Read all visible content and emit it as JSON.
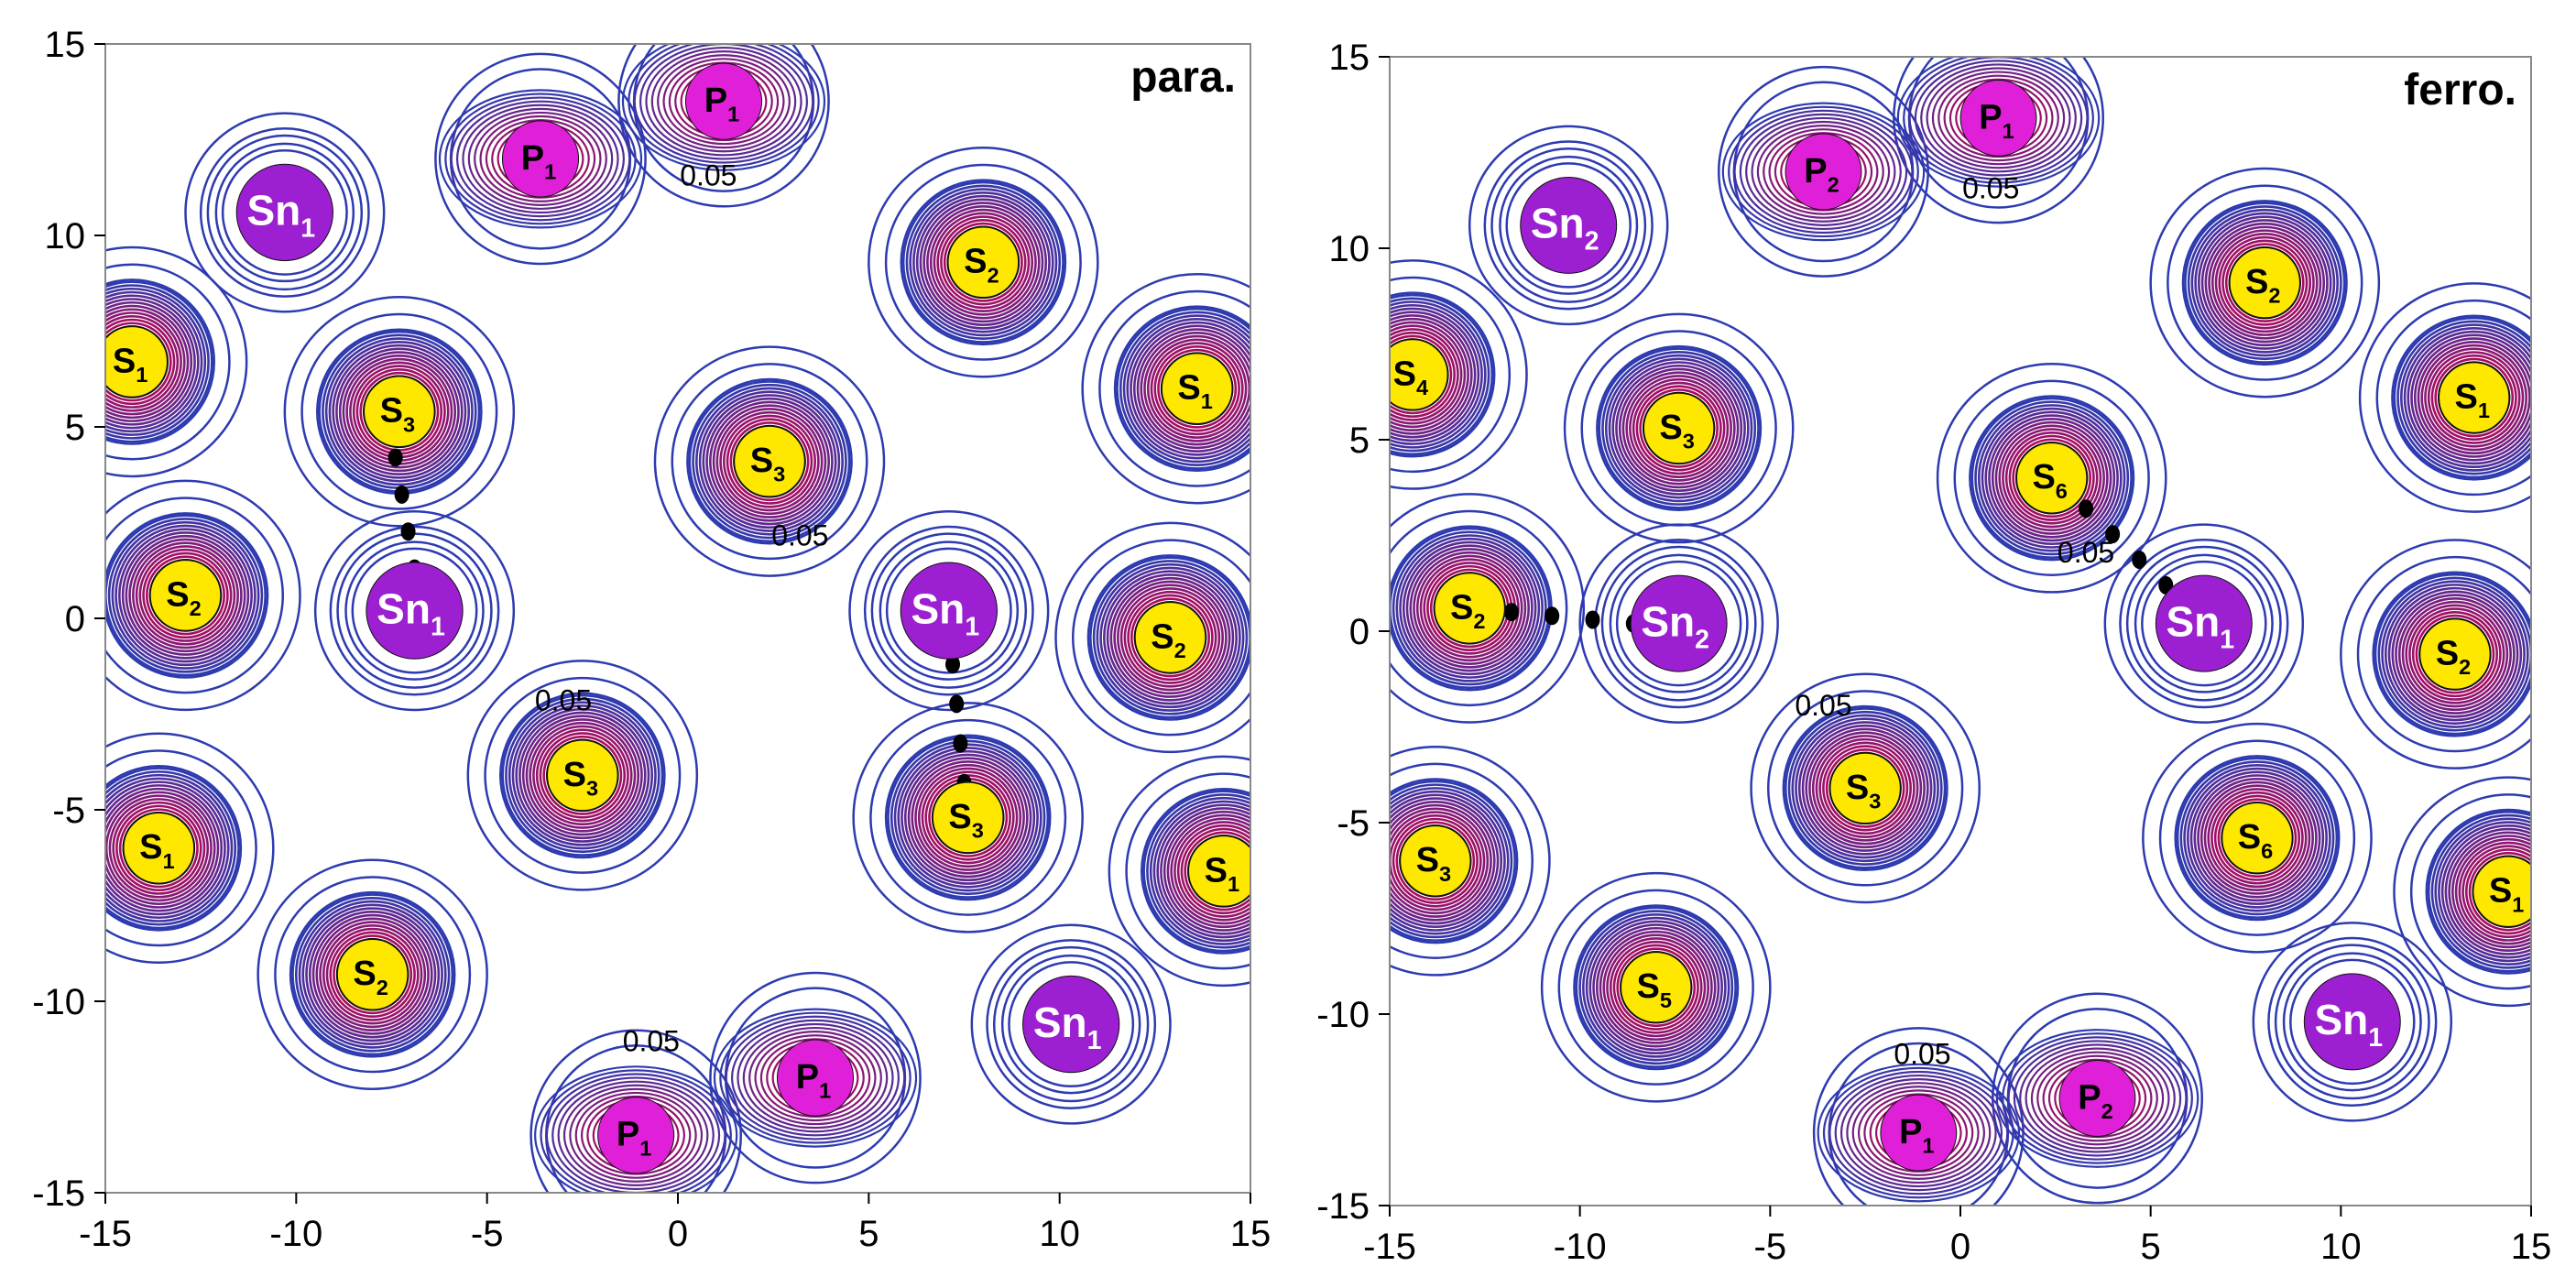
{
  "chart_data": [
    {
      "type": "contour",
      "title": "para.",
      "xlim": [
        -15,
        15
      ],
      "ylim": [
        -15,
        15
      ],
      "x_ticks": [
        -15,
        -10,
        -5,
        0,
        5,
        10,
        15
      ],
      "y_ticks": [
        -15,
        -10,
        -5,
        0,
        5,
        10,
        15
      ],
      "contour_labels": [
        {
          "text": "0.05",
          "x": 0.8,
          "y": 11.3
        },
        {
          "text": "0.05",
          "x": 3.2,
          "y": 1.9
        },
        {
          "text": "0.05",
          "x": -3.0,
          "y": -2.4
        },
        {
          "text": "0.05",
          "x": -0.7,
          "y": -11.3
        }
      ],
      "atoms": [
        {
          "element": "P",
          "index": "1",
          "x": 1.2,
          "y": 13.5,
          "kind": "P"
        },
        {
          "element": "P",
          "index": "1",
          "x": -3.6,
          "y": 12.0,
          "kind": "P"
        },
        {
          "element": "Sn",
          "index": "1",
          "x": -10.3,
          "y": 10.6,
          "kind": "Sn"
        },
        {
          "element": "S",
          "index": "2",
          "x": 8.0,
          "y": 9.3,
          "kind": "S"
        },
        {
          "element": "S",
          "index": "1",
          "x": -14.3,
          "y": 6.7,
          "kind": "S"
        },
        {
          "element": "S",
          "index": "1",
          "x": 13.6,
          "y": 6.0,
          "kind": "S"
        },
        {
          "element": "S",
          "index": "3",
          "x": -7.3,
          "y": 5.4,
          "kind": "S"
        },
        {
          "element": "S",
          "index": "3",
          "x": 2.4,
          "y": 4.1,
          "kind": "S"
        },
        {
          "element": "S",
          "index": "2",
          "x": -12.9,
          "y": 0.6,
          "kind": "S"
        },
        {
          "element": "Sn",
          "index": "1",
          "x": -6.9,
          "y": 0.2,
          "kind": "Sn"
        },
        {
          "element": "Sn",
          "index": "1",
          "x": 7.1,
          "y": 0.2,
          "kind": "Sn"
        },
        {
          "element": "S",
          "index": "2",
          "x": 12.9,
          "y": -0.5,
          "kind": "S"
        },
        {
          "element": "S",
          "index": "3",
          "x": -2.5,
          "y": -4.1,
          "kind": "S"
        },
        {
          "element": "S",
          "index": "3",
          "x": 7.6,
          "y": -5.2,
          "kind": "S"
        },
        {
          "element": "S",
          "index": "1",
          "x": -13.6,
          "y": -6.0,
          "kind": "S"
        },
        {
          "element": "S",
          "index": "1",
          "x": 14.3,
          "y": -6.6,
          "kind": "S"
        },
        {
          "element": "S",
          "index": "2",
          "x": -8.0,
          "y": -9.3,
          "kind": "S"
        },
        {
          "element": "Sn",
          "index": "1",
          "x": 10.3,
          "y": -10.6,
          "kind": "Sn"
        },
        {
          "element": "P",
          "index": "1",
          "x": 3.6,
          "y": -12.0,
          "kind": "P"
        },
        {
          "element": "P",
          "index": "1",
          "x": -1.1,
          "y": -13.5,
          "kind": "P"
        }
      ],
      "bonds": [
        {
          "x1": -7.4,
          "y1": 4.2,
          "x2": -6.9,
          "y2": 1.3
        },
        {
          "x1": 7.2,
          "y1": -1.2,
          "x2": 7.5,
          "y2": -4.3
        }
      ]
    },
    {
      "type": "contour",
      "title": "ferro.",
      "xlim": [
        -15,
        15
      ],
      "ylim": [
        -15,
        15
      ],
      "x_ticks": [
        -15,
        -10,
        -5,
        0,
        5,
        10,
        15
      ],
      "y_ticks": [
        -15,
        -10,
        -5,
        0,
        5,
        10,
        15
      ],
      "contour_labels": [
        {
          "text": "0.05",
          "x": 0.8,
          "y": 11.3
        },
        {
          "text": "0.05",
          "x": 3.3,
          "y": 1.8
        },
        {
          "text": "0.05",
          "x": -3.6,
          "y": -2.2
        },
        {
          "text": "0.05",
          "x": -1.0,
          "y": -11.3
        }
      ],
      "atoms": [
        {
          "element": "P",
          "index": "1",
          "x": 1.0,
          "y": 13.4,
          "kind": "P"
        },
        {
          "element": "P",
          "index": "2",
          "x": -3.6,
          "y": 12.0,
          "kind": "P"
        },
        {
          "element": "Sn",
          "index": "2",
          "x": -10.3,
          "y": 10.6,
          "kind": "Sn"
        },
        {
          "element": "S",
          "index": "2",
          "x": 8.0,
          "y": 9.1,
          "kind": "S"
        },
        {
          "element": "S",
          "index": "4",
          "x": -14.4,
          "y": 6.7,
          "kind": "S"
        },
        {
          "element": "S",
          "index": "1",
          "x": 13.5,
          "y": 6.1,
          "kind": "S"
        },
        {
          "element": "S",
          "index": "3",
          "x": -7.4,
          "y": 5.3,
          "kind": "S"
        },
        {
          "element": "S",
          "index": "6",
          "x": 2.4,
          "y": 4.0,
          "kind": "S"
        },
        {
          "element": "S",
          "index": "2",
          "x": -12.9,
          "y": 0.6,
          "kind": "S"
        },
        {
          "element": "Sn",
          "index": "2",
          "x": -7.4,
          "y": 0.2,
          "kind": "Sn"
        },
        {
          "element": "Sn",
          "index": "1",
          "x": 6.4,
          "y": 0.2,
          "kind": "Sn"
        },
        {
          "element": "S",
          "index": "2",
          "x": 13.0,
          "y": -0.6,
          "kind": "S"
        },
        {
          "element": "S",
          "index": "3",
          "x": -2.5,
          "y": -4.1,
          "kind": "S"
        },
        {
          "element": "S",
          "index": "6",
          "x": 7.8,
          "y": -5.4,
          "kind": "S"
        },
        {
          "element": "S",
          "index": "3",
          "x": -13.8,
          "y": -6.0,
          "kind": "S"
        },
        {
          "element": "S",
          "index": "1",
          "x": 14.4,
          "y": -6.8,
          "kind": "S"
        },
        {
          "element": "S",
          "index": "5",
          "x": -8.0,
          "y": -9.3,
          "kind": "S"
        },
        {
          "element": "Sn",
          "index": "1",
          "x": 10.3,
          "y": -10.2,
          "kind": "Sn"
        },
        {
          "element": "P",
          "index": "2",
          "x": 3.6,
          "y": -12.2,
          "kind": "P"
        },
        {
          "element": "P",
          "index": "1",
          "x": -1.1,
          "y": -13.1,
          "kind": "P"
        }
      ],
      "bonds": [
        {
          "x1": -11.8,
          "y1": 0.5,
          "x2": -8.6,
          "y2": 0.2
        },
        {
          "x1": 3.3,
          "y1": 3.2,
          "x2": 5.4,
          "y2": 1.2
        }
      ]
    }
  ],
  "colors": {
    "contour_outer": "#2e3bb0",
    "contour_inner": "#c7004a",
    "core_white": "#ffffff",
    "S": "#ffe800",
    "Sn": "#9c1fd1",
    "P": "#e020d8",
    "bond": "#000000"
  }
}
